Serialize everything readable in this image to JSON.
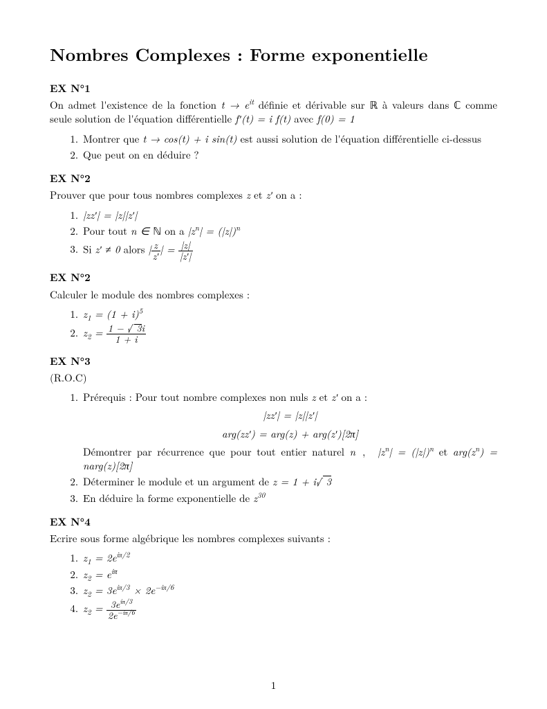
{
  "title": "Nombres Complexes : Forme exponentielle",
  "page_number": "1",
  "ex1": {
    "head": "EX N°1",
    "intro_a": "On admet l'existence de la fonction ",
    "intro_b": " définie et dérivable sur ",
    "intro_c": " à valeurs dans ",
    "intro_d": " comme seule solution de l'équation différentielle ",
    "intro_e": " avec ",
    "q1_a": "Montrer que ",
    "q1_b": " est aussi solution de l'équation différentielle ci-dessus",
    "q2": "Que peut on en déduire ?"
  },
  "ex2a": {
    "head": "EX N°2",
    "intro_a": "Prouver que pour tous nombres complexes ",
    "intro_b": " et ",
    "intro_c": " on a :",
    "q2_a": "Pour tout ",
    "q2_b": " on a ",
    "q3_a": "Si ",
    "q3_b": " alors "
  },
  "ex2b": {
    "head": "EX N°2",
    "intro": "Calculer le module des nombres complexes :"
  },
  "ex3": {
    "head": "EX N°3",
    "roc": "(R.O.C)",
    "q1_a": "Prérequis : Pour tout nombre complexes non nuls ",
    "q1_b": " et ",
    "q1_c": " on a :",
    "q1_d": "Démontrer par récurrence que pour tout entier naturel ",
    "q1_e": " et ",
    "q2_a": "Déterminer le module et un argument de ",
    "q3_a": "En déduire la forme exponentielle de "
  },
  "ex4": {
    "head": "EX N°4",
    "intro": "Ecrire sous forme algébrique les nombres complexes suivants :"
  }
}
